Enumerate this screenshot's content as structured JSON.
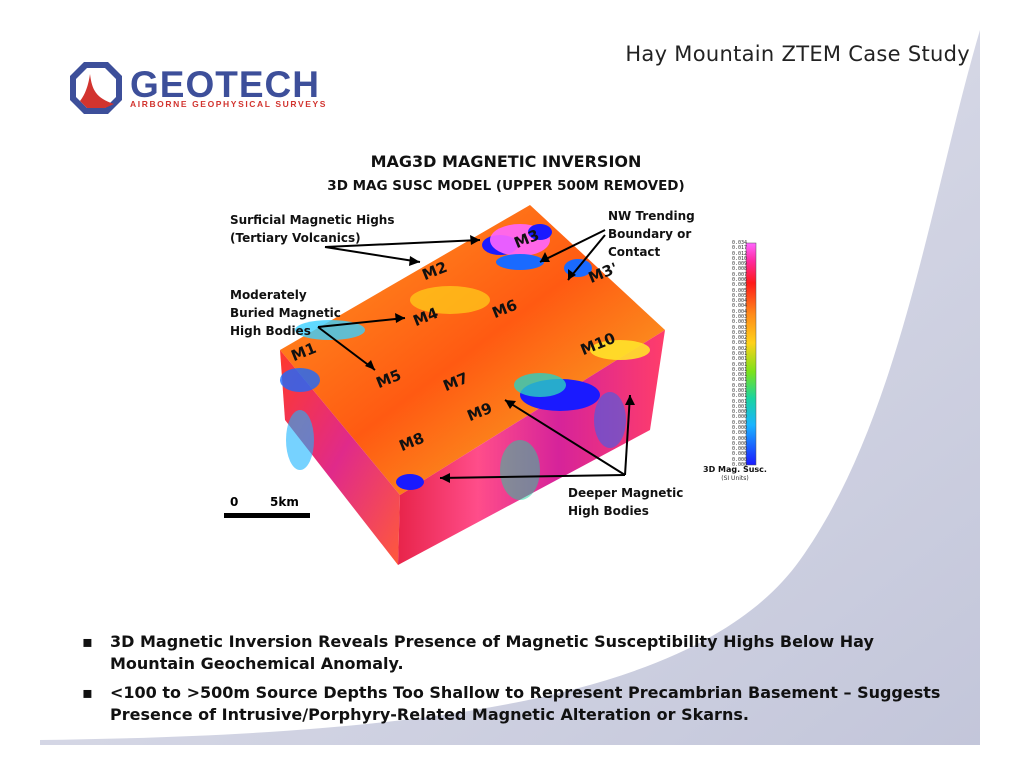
{
  "header": {
    "title": "Hay Mountain ZTEM Case Study"
  },
  "logo": {
    "name": "GEOTECH",
    "tagline": "AIRBORNE GEOPHYSICAL SURVEYS"
  },
  "figure": {
    "title": "MAG3D MAGNETIC INVERSION",
    "subtitle": "3D MAG SUSC MODEL (UPPER 500M REMOVED)",
    "annotations": {
      "surficial": [
        "Surficial Magnetic Highs",
        "(Tertiary Volcanics)"
      ],
      "nw_trending": [
        "NW Trending",
        "Boundary or",
        "Contact"
      ],
      "moderately": [
        "Moderately",
        "Buried Magnetic",
        "High Bodies"
      ],
      "deeper": [
        "Deeper Magnetic",
        "High Bodies"
      ]
    },
    "labels": [
      "M1",
      "M2",
      "M3",
      "M3'",
      "M4",
      "M5",
      "M6",
      "M7",
      "M8",
      "M9",
      "M10"
    ],
    "scale": {
      "zero": "0",
      "distance": "5km"
    },
    "colorbar": {
      "title": "3D Mag. Susc.",
      "units": "(SI Units)",
      "ticks": [
        "0.034",
        "0.017",
        "0.012",
        "0.010",
        "0.009",
        "0.008",
        "0.007",
        "0.006",
        "0.006",
        "0.005",
        "0.005",
        "0.004",
        "0.004",
        "0.004",
        "0.003",
        "0.003",
        "0.003",
        "0.002",
        "0.002",
        "0.002",
        "0.002",
        "0.001",
        "0.001",
        "0.001",
        "0.001",
        "0.001",
        "0.001",
        "0.001",
        "0.001",
        "0.001",
        "0.001",
        "0.001",
        "0.000",
        "0.000",
        "0.000",
        "0.000",
        "0.000",
        "0.000",
        "0.000",
        "0.000",
        "0.000",
        "0.000",
        "0.000"
      ]
    }
  },
  "bullets": [
    {
      "mark": "▪",
      "text": "3D Magnetic Inversion Reveals Presence of Magnetic Susceptibility Highs Below Hay Mountain Geochemical Anomaly."
    },
    {
      "mark": "▪",
      "text": "<100 to >500m Source Depths Too Shallow to Represent Precambrian Basement – Suggests Presence of Intrusive/Porphyry-Related Magnetic Alteration or Skarns."
    }
  ],
  "colors": {
    "logo_blue": "#3d4f9a",
    "logo_red": "#d2342f",
    "swoosh": "#c9ccdf"
  }
}
